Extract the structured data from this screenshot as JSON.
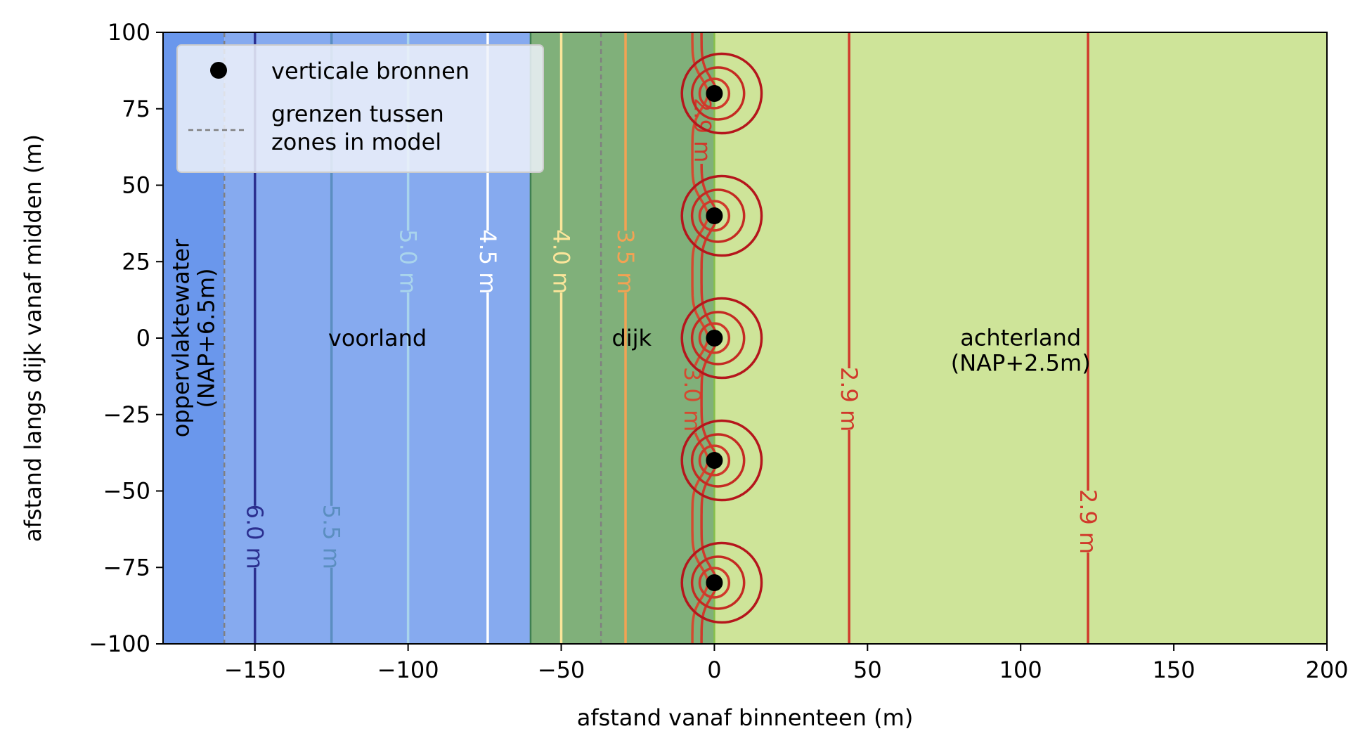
{
  "chart_data": {
    "type": "contour",
    "xlabel": "afstand vanaf binnenteen (m)",
    "ylabel": "afstand langs dijk vanaf midden (m)",
    "xlim": [
      -180,
      200
    ],
    "ylim": [
      -100,
      100
    ],
    "xticks": [
      -150,
      -100,
      -50,
      0,
      50,
      100,
      150,
      200
    ],
    "yticks": [
      -100,
      -75,
      -50,
      -25,
      0,
      25,
      50,
      75,
      100
    ],
    "zones": [
      {
        "name": "oppervlaktewater",
        "x_from": -180,
        "x_to": -160,
        "color": "#6a97ec",
        "label": "oppervlaktewater\n(NAP+6.5m)",
        "label_x": -170,
        "label_y": 0,
        "rotate": true
      },
      {
        "name": "voorland",
        "x_from": -160,
        "x_to": -60,
        "color": "#86aaef",
        "label": "voorland",
        "label_x": -110,
        "label_y": 0,
        "rotate": false
      },
      {
        "name": "dijk",
        "x_from": -60,
        "x_to": 0,
        "color": "#80b07a",
        "label": "dijk",
        "label_x": -27,
        "label_y": 0,
        "rotate": false
      },
      {
        "name": "achterland",
        "x_from": 0,
        "x_to": 200,
        "color": "#cee499",
        "label": "achterland\n(NAP+2.5m)",
        "label_x": 100,
        "label_y": -4,
        "rotate": false
      }
    ],
    "zone_boundaries": [
      -160,
      -37
    ],
    "wells": [
      {
        "x": 0,
        "y": 80
      },
      {
        "x": 0,
        "y": 40
      },
      {
        "x": 0,
        "y": 0
      },
      {
        "x": 0,
        "y": -40
      },
      {
        "x": 0,
        "y": -80
      }
    ],
    "straight_contours": [
      {
        "level": "6.0 m",
        "x": -150,
        "color": "#2b2f8f",
        "label_y": -65
      },
      {
        "level": "5.5 m",
        "x": -125,
        "color": "#5b8ec0",
        "label_y": -65
      },
      {
        "level": "5.0 m",
        "x": -100,
        "color": "#a9d4ec",
        "label_y": 25
      },
      {
        "level": "4.5 m",
        "x": -74,
        "color": "#ffffff",
        "label_y": 25
      },
      {
        "level": "4.0 m",
        "x": -50,
        "color": "#fbe59a",
        "label_y": 25
      },
      {
        "level": "3.5 m",
        "x": -29,
        "color": "#f3a253",
        "label_y": 25
      },
      {
        "level": "2.9 m",
        "x": 44,
        "color": "#d0392b",
        "label_y": -20
      },
      {
        "level": "2.9 m",
        "x": 122,
        "color": "#d0392b",
        "label_y": -60
      }
    ],
    "wavy_contours": [
      {
        "level": "3.0 m",
        "x": -5,
        "color": "#d44a30",
        "label_y": -20
      },
      {
        "level": "2.9 m",
        "x": -2,
        "color": "#d0392b",
        "label_y": 68
      }
    ],
    "legend": {
      "location": "upper-left",
      "entries": [
        "verticale bronnen",
        "grenzen tussen\nzones in model"
      ]
    }
  }
}
